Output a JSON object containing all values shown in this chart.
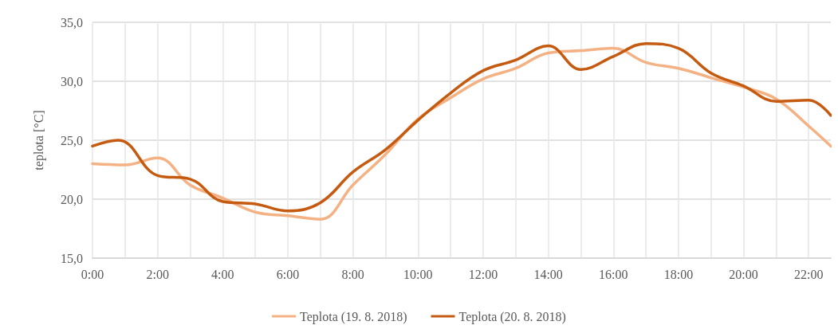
{
  "chart_data": {
    "type": "line",
    "ylabel": "teplota [°C]",
    "xlim": [
      0,
      22.68
    ],
    "ylim": [
      15,
      35
    ],
    "xticks": [
      {
        "value": 0,
        "label": "0:00"
      },
      {
        "value": 1,
        "label": null
      },
      {
        "value": 2,
        "label": "2:00"
      },
      {
        "value": 3,
        "label": null
      },
      {
        "value": 4,
        "label": "4:00"
      },
      {
        "value": 5,
        "label": null
      },
      {
        "value": 6,
        "label": "6:00"
      },
      {
        "value": 7,
        "label": null
      },
      {
        "value": 8,
        "label": "8:00"
      },
      {
        "value": 9,
        "label": null
      },
      {
        "value": 10,
        "label": "10:00"
      },
      {
        "value": 11,
        "label": null
      },
      {
        "value": 12,
        "label": "12:00"
      },
      {
        "value": 13,
        "label": null
      },
      {
        "value": 14,
        "label": "14:00"
      },
      {
        "value": 15,
        "label": null
      },
      {
        "value": 16,
        "label": "16:00"
      },
      {
        "value": 17,
        "label": null
      },
      {
        "value": 18,
        "label": "18:00"
      },
      {
        "value": 19,
        "label": null
      },
      {
        "value": 20,
        "label": "20:00"
      },
      {
        "value": 21,
        "label": null
      },
      {
        "value": 22,
        "label": "22:00"
      }
    ],
    "yticks": [
      {
        "value": 15,
        "label": "15,0"
      },
      {
        "value": 20,
        "label": "20,0"
      },
      {
        "value": 25,
        "label": "25,0"
      },
      {
        "value": 30,
        "label": "30,0"
      },
      {
        "value": 35,
        "label": "35,0"
      }
    ],
    "grid": true,
    "legend": "bottom",
    "marker": "none",
    "line_style": "solid",
    "series": [
      {
        "name": "Teplota (19. 8. 2018)",
        "color": "#f4b183",
        "x": [
          0,
          1,
          2,
          3,
          4,
          5,
          6,
          7,
          8,
          9,
          10,
          11,
          12,
          13,
          14,
          15,
          16,
          17,
          18,
          19,
          20,
          21,
          22,
          22.68
        ],
        "values": [
          23.0,
          22.9,
          23.5,
          21.2,
          20.1,
          18.9,
          18.6,
          18.3,
          21.2,
          23.8,
          26.8,
          28.6,
          30.2,
          31.1,
          32.4,
          32.6,
          32.8,
          31.6,
          31.1,
          30.3,
          29.5,
          28.5,
          26.2,
          24.5
        ]
      },
      {
        "name": "Teplota (20. 8. 2018)",
        "color": "#c55a11",
        "x": [
          0,
          0.8,
          2,
          3,
          4,
          5,
          6,
          7,
          8,
          9,
          10,
          11,
          12,
          13,
          14,
          15,
          16,
          17,
          18,
          19,
          20,
          21,
          22,
          22.68
        ],
        "values": [
          24.5,
          25.0,
          22.0,
          21.7,
          19.8,
          19.6,
          19.0,
          19.7,
          22.3,
          24.2,
          26.7,
          29.0,
          30.9,
          31.8,
          33.0,
          31.0,
          32.1,
          33.2,
          32.8,
          30.7,
          29.6,
          28.3,
          28.4,
          27.1
        ]
      }
    ]
  }
}
